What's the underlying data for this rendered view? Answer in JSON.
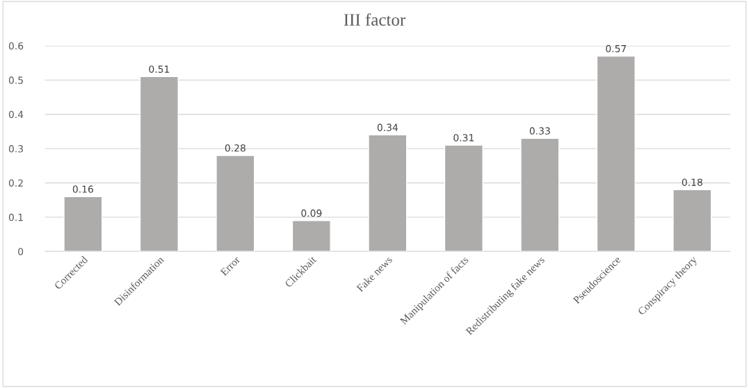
{
  "chart_data": {
    "type": "bar",
    "title": "III factor",
    "categories": [
      "Corrected",
      "Disinformation",
      "Error",
      "Clickbait",
      "Fake news",
      "Manipulation of facts",
      "Redistributing fake news",
      "Pseudoscience",
      "Conspiracy theory"
    ],
    "values": [
      0.16,
      0.51,
      0.28,
      0.09,
      0.34,
      0.31,
      0.33,
      0.57,
      0.18
    ],
    "color": "#aeabab",
    "ylim": [
      0,
      0.6
    ],
    "yticks": [
      {
        "value": 0,
        "label": "0"
      },
      0.1,
      0.2,
      0.3,
      0.4,
      0.5,
      0.6
    ],
    "grid": "y",
    "data_labels": true,
    "legend": false
  }
}
